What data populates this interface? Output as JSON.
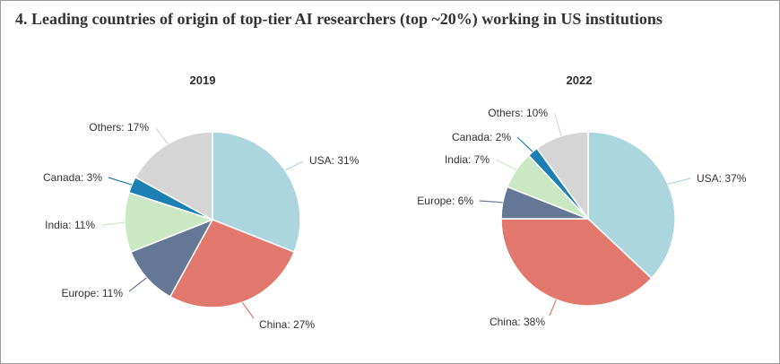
{
  "page_title": "4. Leading countries of origin of top-tier AI researchers (top ~20%) working in US institutions",
  "chart_data": [
    {
      "type": "pie",
      "title": "2019",
      "slices": [
        {
          "label": "USA: 31%",
          "name": "USA",
          "value": 31,
          "color": "#acd6dd"
        },
        {
          "label": "China: 27%",
          "name": "China",
          "value": 27,
          "color": "#e1776d"
        },
        {
          "label": "Europe: 11%",
          "name": "Europe",
          "value": 11,
          "color": "#647895"
        },
        {
          "label": "India: 11%",
          "name": "India",
          "value": 11,
          "color": "#cbe8c4"
        },
        {
          "label": "Canada: 3%",
          "name": "Canada",
          "value": 3,
          "color": "#1c7fb1"
        },
        {
          "label": "Others: 17%",
          "name": "Others",
          "value": 17,
          "color": "#d5d5d5"
        }
      ]
    },
    {
      "type": "pie",
      "title": "2022",
      "slices": [
        {
          "label": "USA: 37%",
          "name": "USA",
          "value": 37,
          "color": "#acd6dd"
        },
        {
          "label": "China: 38%",
          "name": "China",
          "value": 38,
          "color": "#e1776d"
        },
        {
          "label": "Europe: 6%",
          "name": "Europe",
          "value": 6,
          "color": "#647895"
        },
        {
          "label": "India: 7%",
          "name": "India",
          "value": 7,
          "color": "#cbe8c4"
        },
        {
          "label": "Canada: 2%",
          "name": "Canada",
          "value": 2,
          "color": "#1c7fb1"
        },
        {
          "label": "Others: 10%",
          "name": "Others",
          "value": 10,
          "color": "#d5d5d5"
        }
      ]
    }
  ]
}
